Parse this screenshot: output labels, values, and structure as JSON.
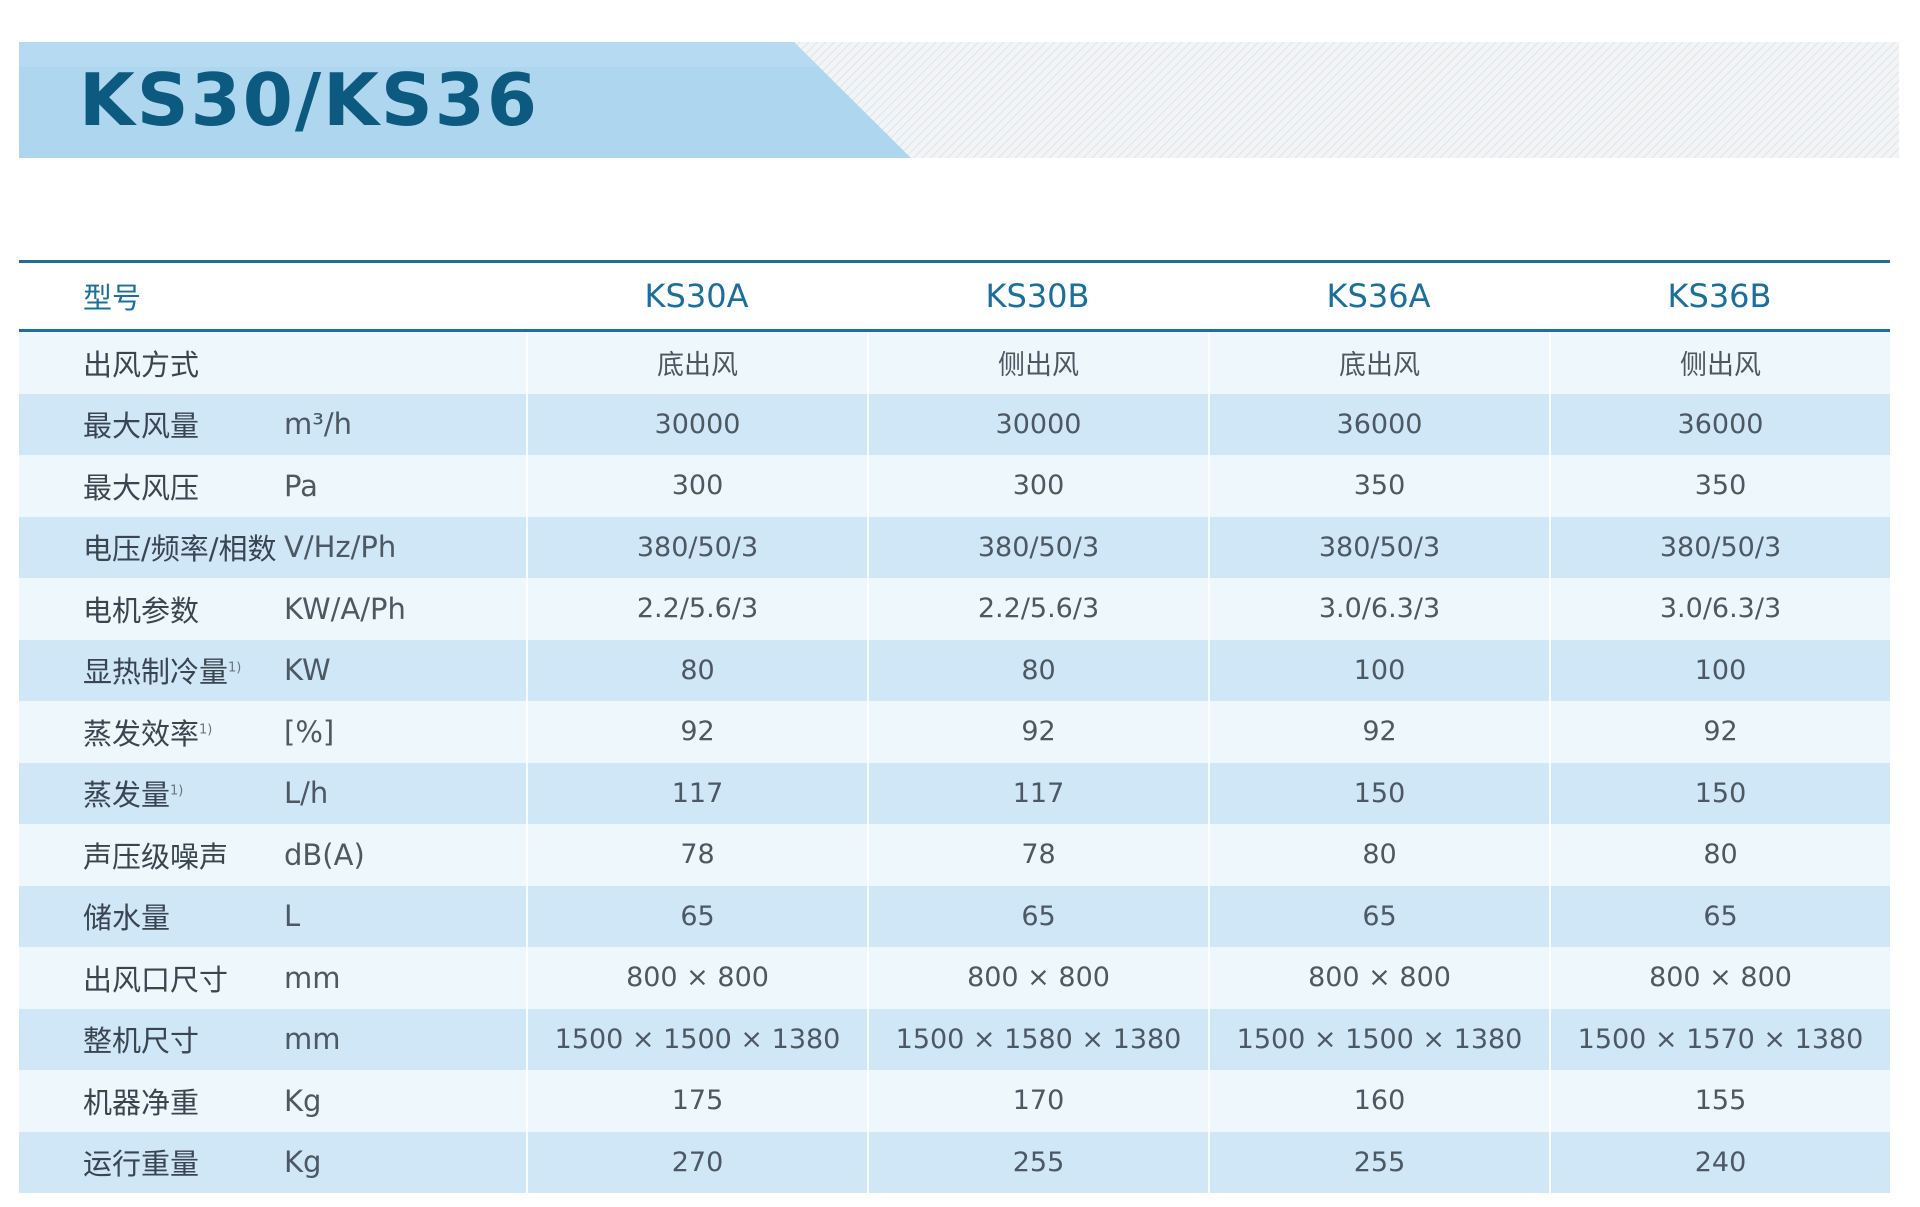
{
  "title": "KS30/KS36",
  "table": {
    "header": {
      "label": "型号",
      "models": [
        "KS30A",
        "KS30B",
        "KS36A",
        "KS36B"
      ]
    },
    "rows": [
      {
        "label": "出风方式",
        "note": "",
        "unit": "",
        "values": [
          "底出风",
          "侧出风",
          "底出风",
          "侧出风"
        ]
      },
      {
        "label": "最大风量",
        "note": "",
        "unit": "m³/h",
        "values": [
          "30000",
          "30000",
          "36000",
          "36000"
        ]
      },
      {
        "label": "最大风压",
        "note": "",
        "unit": "Pa",
        "values": [
          "300",
          "300",
          "350",
          "350"
        ]
      },
      {
        "label": "电压/频率/相数",
        "note": "",
        "unit": "V/Hz/Ph",
        "values": [
          "380/50/3",
          "380/50/3",
          "380/50/3",
          "380/50/3"
        ]
      },
      {
        "label": "电机参数",
        "note": "",
        "unit": "KW/A/Ph",
        "values": [
          "2.2/5.6/3",
          "2.2/5.6/3",
          "3.0/6.3/3",
          "3.0/6.3/3"
        ]
      },
      {
        "label": "显热制冷量",
        "note": "1)",
        "unit": "KW",
        "values": [
          "80",
          "80",
          "100",
          "100"
        ]
      },
      {
        "label": "蒸发效率",
        "note": "1)",
        "unit": "[%]",
        "values": [
          "92",
          "92",
          "92",
          "92"
        ]
      },
      {
        "label": "蒸发量",
        "note": "1)",
        "unit": "L/h",
        "values": [
          "117",
          "117",
          "150",
          "150"
        ]
      },
      {
        "label": "声压级噪声",
        "note": "",
        "unit": "dB(A)",
        "values": [
          "78",
          "78",
          "80",
          "80"
        ]
      },
      {
        "label": "储水量",
        "note": "",
        "unit": "L",
        "values": [
          "65",
          "65",
          "65",
          "65"
        ]
      },
      {
        "label": "出风口尺寸",
        "note": "",
        "unit": "mm",
        "values": [
          "800 × 800",
          "800 × 800",
          "800 × 800",
          "800 × 800"
        ]
      },
      {
        "label": "整机尺寸",
        "note": "",
        "unit": "mm",
        "values": [
          "1500 × 1500 × 1380",
          "1500 × 1580 × 1380",
          "1500 × 1500 × 1380",
          "1500 × 1570 × 1380"
        ]
      },
      {
        "label": "机器净重",
        "note": "",
        "unit": "Kg",
        "values": [
          "175",
          "170",
          "160",
          "155"
        ]
      },
      {
        "label": "运行重量",
        "note": "",
        "unit": "Kg",
        "values": [
          "270",
          "255",
          "255",
          "240"
        ]
      }
    ]
  }
}
